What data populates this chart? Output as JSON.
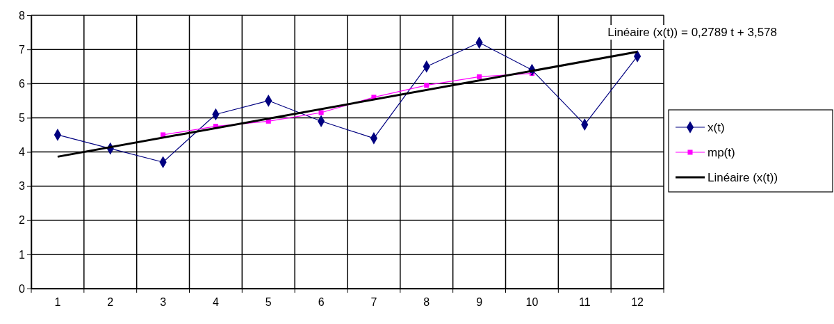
{
  "chart_data": {
    "type": "line",
    "categories": [
      "1",
      "2",
      "3",
      "4",
      "5",
      "6",
      "7",
      "8",
      "9",
      "10",
      "11",
      "12"
    ],
    "ylim": [
      0,
      8
    ],
    "yticks": [
      0,
      1,
      2,
      3,
      4,
      5,
      6,
      7,
      8
    ],
    "grid": true,
    "legend": "right",
    "annotations": [
      "Linéaire (x(t)) = 0,2789 t + 3,578"
    ],
    "series": [
      {
        "name": "x(t)",
        "color": "#000080",
        "marker": "diamond",
        "values": [
          4.5,
          4.1,
          3.7,
          5.1,
          5.5,
          4.9,
          4.4,
          6.5,
          7.2,
          6.4,
          4.8,
          6.8
        ]
      },
      {
        "name": "mp(t)",
        "color": "#ff00ff",
        "marker": "square",
        "values": [
          null,
          null,
          4.5,
          4.75,
          4.9,
          5.15,
          5.6,
          5.95,
          6.2,
          6.3,
          null,
          null
        ]
      },
      {
        "name": "Linéaire (x(t))",
        "type": "line",
        "color": "#000000",
        "marker": "none",
        "x": [
          "1",
          "12"
        ],
        "values": [
          3.86,
          6.93
        ]
      }
    ]
  }
}
